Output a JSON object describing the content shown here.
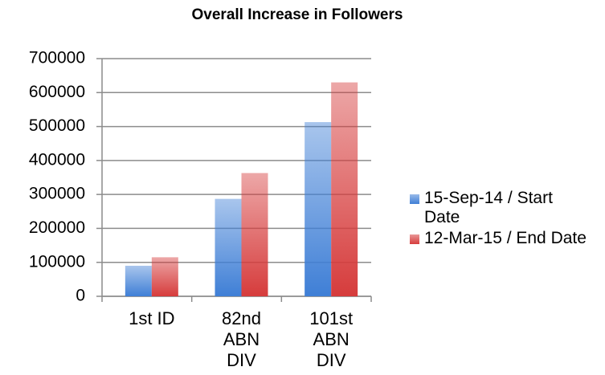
{
  "chart_data": {
    "type": "bar",
    "title": "Overall Increase in Followers",
    "categories": [
      "1st ID",
      "82nd ABN DIV",
      "101st ABN DIV"
    ],
    "series": [
      {
        "name": "15-Sep-14 / Start Date",
        "color": "#3f7fd6",
        "values": [
          90000,
          287000,
          513000
        ]
      },
      {
        "name": "12-Mar-15 / End Date",
        "color": "#d63c3c",
        "values": [
          115000,
          363000,
          630000
        ]
      }
    ],
    "ylim": [
      0,
      700000
    ],
    "yticks": [
      0,
      100000,
      200000,
      300000,
      400000,
      500000,
      600000,
      700000
    ],
    "grid": true,
    "legend": "right"
  }
}
